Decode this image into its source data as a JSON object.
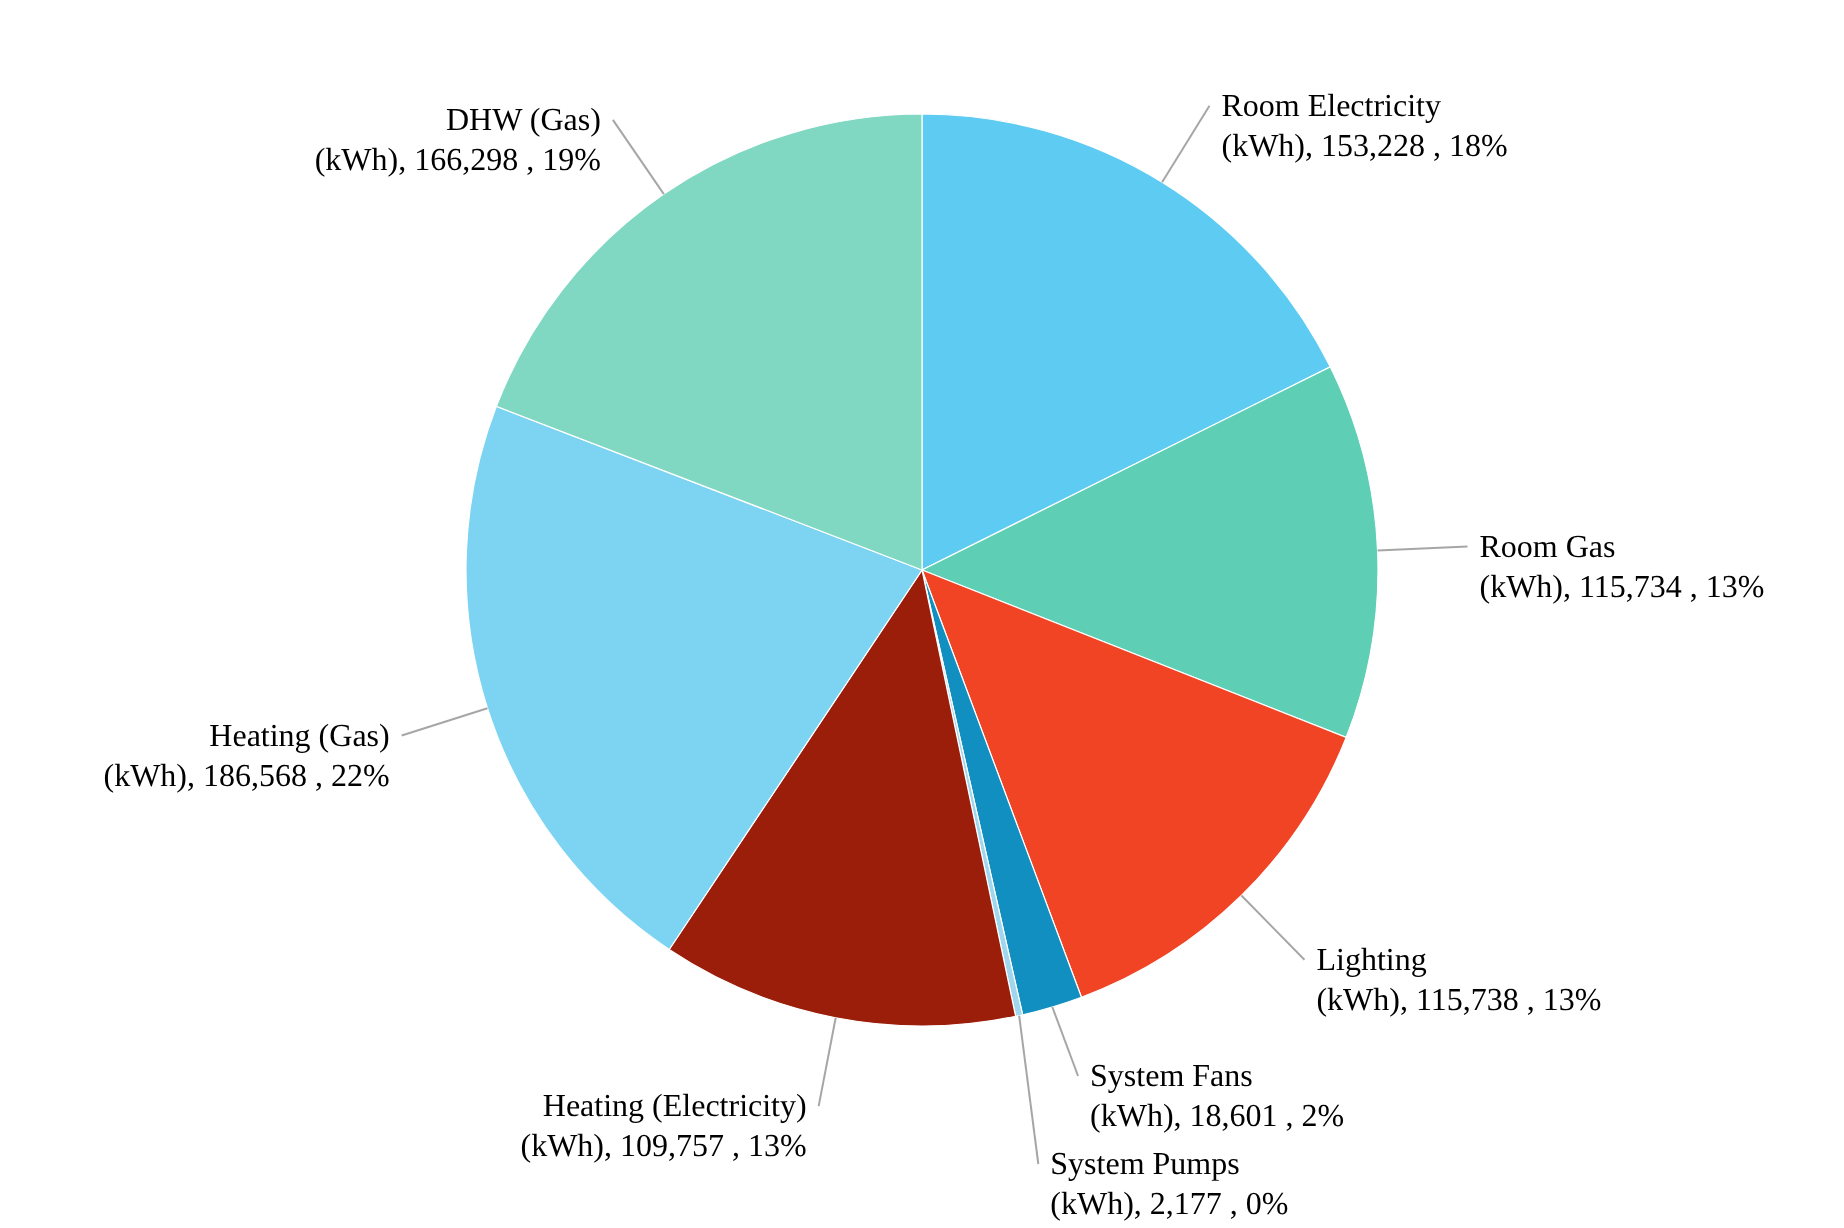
{
  "chart_data": {
    "type": "pie",
    "categories": [
      "Room Electricity (kWh)",
      "Room Gas (kWh)",
      "Lighting (kWh)",
      "System Fans (kWh)",
      "System Pumps (kWh)",
      "Heating (Electricity) (kWh)",
      "Heating (Gas) (kWh)",
      "DHW (Gas) (kWh)"
    ],
    "values": [
      153228,
      115734,
      115738,
      18601,
      2177,
      109757,
      186568,
      166298
    ],
    "colors": [
      "#5ecbf2",
      "#5ecfb4",
      "#f04425",
      "#118fc0",
      "#9fd8ee",
      "#9b1e0b",
      "#7dd4f2",
      "#80d8c2"
    ],
    "value_labels": [
      "153,228 , 18%",
      "115,734 , 13%",
      "115,738 , 13%",
      "18,601 , 2%",
      "2,177 , 0%",
      "109,757 , 13%",
      "186,568 , 22%",
      "166,298 , 19%"
    ]
  }
}
